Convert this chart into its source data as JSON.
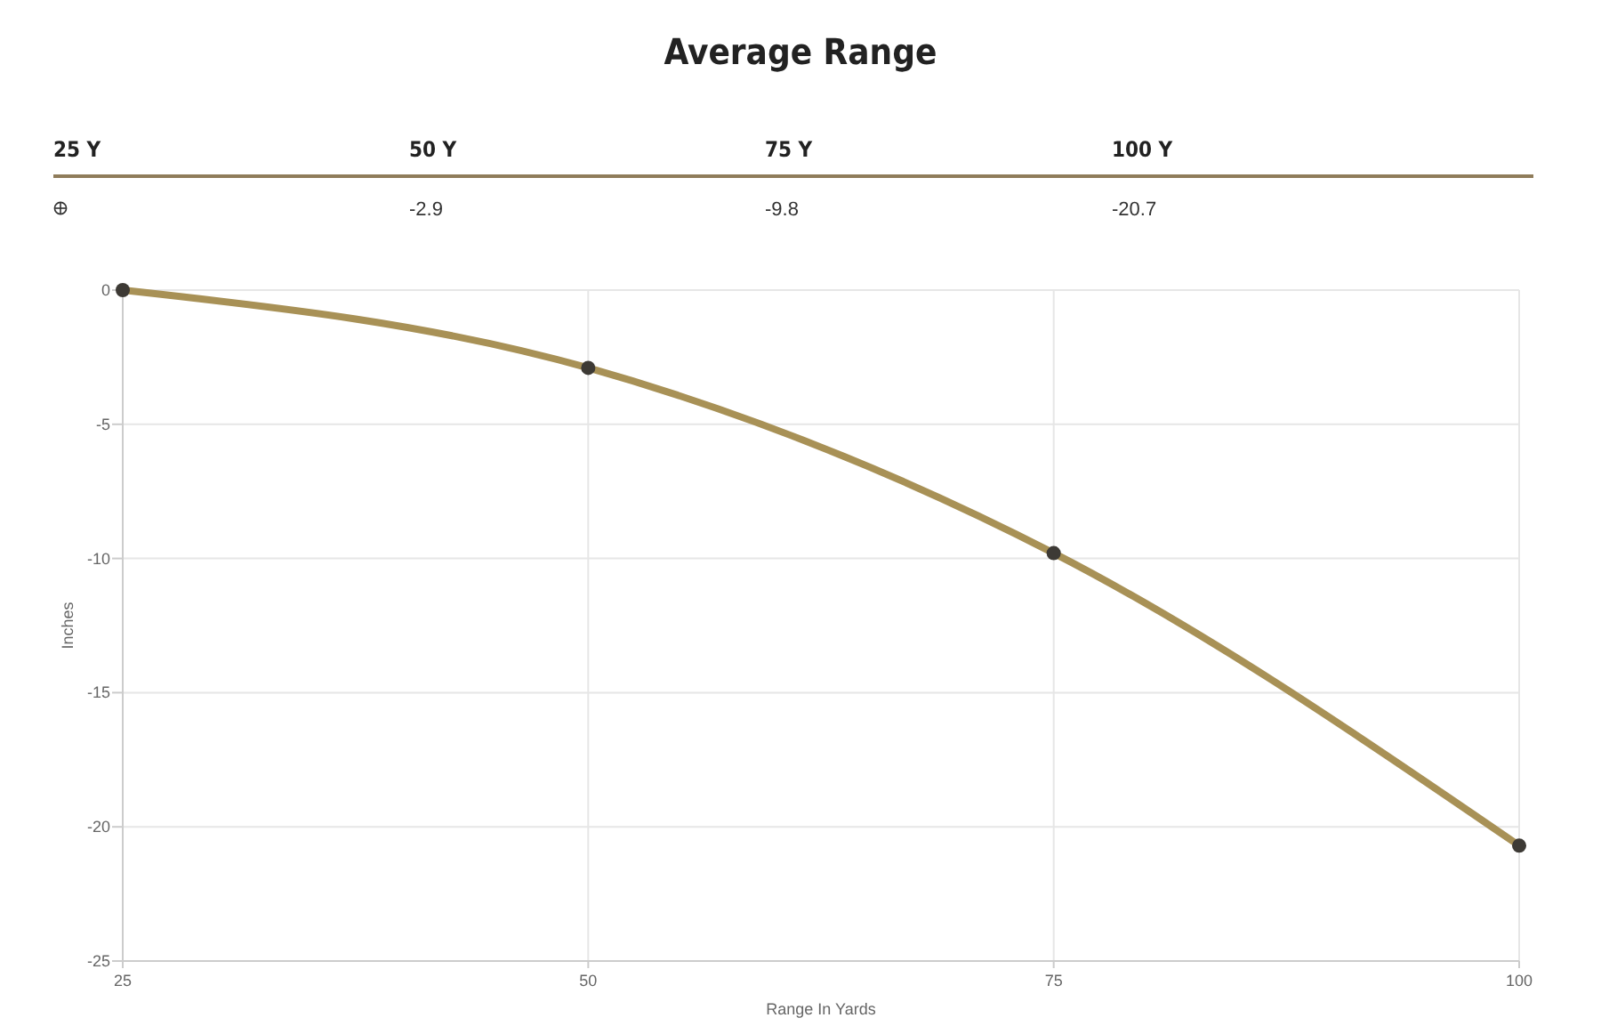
{
  "chart_data": {
    "type": "line",
    "title": "Average Range",
    "xlabel": "Range In Yards",
    "ylabel": "Inches",
    "x": [
      25,
      50,
      75,
      100
    ],
    "series": [
      {
        "color": "#a89156",
        "values": [
          0,
          -2.9,
          -9.8,
          -20.7
        ]
      }
    ],
    "value_labels": [
      null,
      "-2.9",
      "-9.8",
      "-20.7"
    ],
    "annotations": [
      "25 Y",
      "50 Y",
      "75 Y",
      "100 Y"
    ],
    "xlim": [
      25,
      100
    ],
    "xticks": [
      25,
      50,
      75,
      100
    ],
    "ylim": [
      -25,
      0
    ],
    "yticks": [
      -25,
      -20,
      -15,
      -10,
      -5,
      0
    ],
    "grid": true,
    "marker": "circle",
    "line_style": "solid"
  }
}
